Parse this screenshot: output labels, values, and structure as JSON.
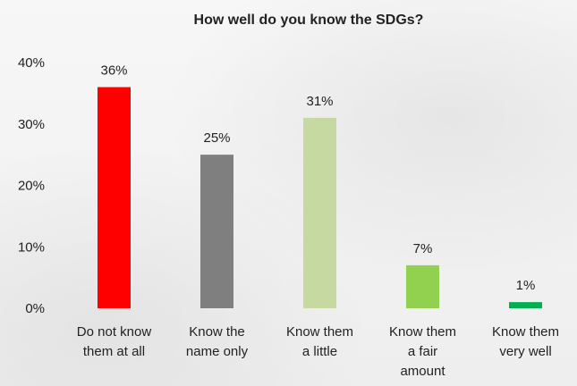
{
  "chart_data": {
    "type": "bar",
    "title": "How well do you know the SDGs?",
    "categories": [
      [
        "Do not know",
        "them at all"
      ],
      [
        "Know the",
        "name only"
      ],
      [
        "Know them",
        "a little"
      ],
      [
        "Know them",
        "a fair",
        "amount"
      ],
      [
        "Know them",
        "very well"
      ]
    ],
    "values": [
      36,
      25,
      31,
      7,
      1
    ],
    "data_labels": [
      "36%",
      "25%",
      "31%",
      "7%",
      "1%"
    ],
    "colors": [
      "#ff0000",
      "#7f7f7f",
      "#c5d9a0",
      "#92d050",
      "#00b050"
    ],
    "ylim": [
      0,
      40
    ],
    "yticks": [
      {
        "value": 0,
        "label": "0%"
      },
      {
        "value": 10,
        "label": "10%"
      },
      {
        "value": 20,
        "label": "20%"
      },
      {
        "value": 30,
        "label": "30%"
      },
      {
        "value": 40,
        "label": "40%"
      }
    ],
    "grid": false,
    "legend": "none",
    "xlabel": "",
    "ylabel": ""
  }
}
